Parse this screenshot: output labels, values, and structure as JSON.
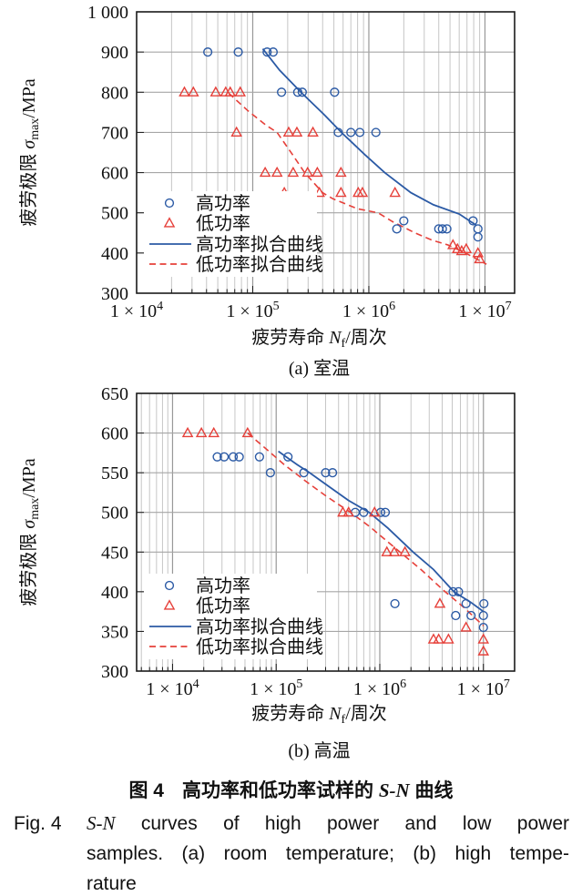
{
  "figure": {
    "caption_zh": {
      "fig_label": "图 4",
      "text_pre": "高功率和低功率试样的 ",
      "italic": "S-N",
      "text_post": " 曲线"
    },
    "caption_en": {
      "fig_label": "Fig. 4",
      "line1_italic": "S-N",
      "line1_rest": "curves of high power and low power",
      "line2": "samples. (a) room temperature; (b) high tempe-",
      "line3": "rature"
    }
  },
  "colors": {
    "high_power": "#2b5aa5",
    "low_power": "#e6403a",
    "grid_minor": "#c6c6c6",
    "grid_major": "#989898",
    "grid_horizontal": "#a6a6a6",
    "frame": "#1a1a1a"
  },
  "chart_data": [
    {
      "type": "scatter",
      "sub_caption": "(a) 室温",
      "xlabel_parts": {
        "pre": "疲劳寿命 ",
        "italic": "N",
        "sub": "f",
        "post": "/周次"
      },
      "ylabel_parts": {
        "pre": "疲劳极限 ",
        "italic": "σ",
        "sub": "max",
        "post": "/MPa"
      },
      "x_scale": "log",
      "x_range": [
        10000,
        18000000
      ],
      "y_range": [
        300,
        1000
      ],
      "x_ticks": [
        {
          "value": 10000,
          "mantissa": "1 × 10",
          "exponent": "4"
        },
        {
          "value": 100000,
          "mantissa": "1 × 10",
          "exponent": "5"
        },
        {
          "value": 1000000,
          "mantissa": "1 × 10",
          "exponent": "6"
        },
        {
          "value": 10000000,
          "mantissa": "1 × 10",
          "exponent": "7"
        }
      ],
      "y_ticks": [
        {
          "value": 300,
          "label": "300"
        },
        {
          "value": 400,
          "label": "400"
        },
        {
          "value": 500,
          "label": "500"
        },
        {
          "value": 600,
          "label": "600"
        },
        {
          "value": 700,
          "label": "700"
        },
        {
          "value": 800,
          "label": "800"
        },
        {
          "value": 900,
          "label": "900"
        },
        {
          "value": 1000,
          "label": "1 000"
        }
      ],
      "series": [
        {
          "id": "high-power-points",
          "label": "高功率",
          "type": "scatter",
          "marker": "circle",
          "color_key": "high_power",
          "points": [
            [
              41000,
              900
            ],
            [
              75000,
              900
            ],
            [
              133000,
              900
            ],
            [
              150000,
              900
            ],
            [
              177000,
              800
            ],
            [
              244000,
              800
            ],
            [
              267000,
              800
            ],
            [
              507000,
              800
            ],
            [
              545000,
              700
            ],
            [
              700000,
              700
            ],
            [
              836000,
              700
            ],
            [
              1150000,
              700
            ],
            [
              1740000,
              460
            ],
            [
              2000000,
              480
            ],
            [
              4000000,
              460
            ],
            [
              4300000,
              460
            ],
            [
              4700000,
              460
            ],
            [
              7900000,
              480
            ],
            [
              8700000,
              460
            ],
            [
              8700000,
              440
            ]
          ]
        },
        {
          "id": "low-power-points",
          "label": "低功率",
          "type": "scatter",
          "marker": "triangle",
          "color_key": "low_power",
          "points": [
            [
              25800,
              800
            ],
            [
              30800,
              800
            ],
            [
              48000,
              800
            ],
            [
              58500,
              800
            ],
            [
              64000,
              800
            ],
            [
              78000,
              800
            ],
            [
              72500,
              700
            ],
            [
              204000,
              700
            ],
            [
              240000,
              700
            ],
            [
              330000,
              700
            ],
            [
              128000,
              600
            ],
            [
              162000,
              600
            ],
            [
              223000,
              600
            ],
            [
              297000,
              600
            ],
            [
              360000,
              600
            ],
            [
              575000,
              600
            ],
            [
              187000,
              550
            ],
            [
              375000,
              550
            ],
            [
              575000,
              550
            ],
            [
              810000,
              550
            ],
            [
              880000,
              550
            ],
            [
              1680000,
              550
            ],
            [
              5300000,
              420
            ],
            [
              5800000,
              410
            ],
            [
              6300000,
              405
            ],
            [
              6900000,
              410
            ],
            [
              8700000,
              400
            ],
            [
              9000000,
              385
            ]
          ]
        },
        {
          "id": "high-power-fit",
          "label": "高功率拟合曲线",
          "type": "line",
          "style": "solid",
          "color_key": "high_power",
          "points": [
            [
              122000,
              908
            ],
            [
              170000,
              855
            ],
            [
              260000,
              800
            ],
            [
              410000,
              745
            ],
            [
              580000,
              700
            ],
            [
              920000,
              645
            ],
            [
              1370000,
              600
            ],
            [
              2300000,
              550
            ],
            [
              3600000,
              520
            ],
            [
              6000000,
              497
            ],
            [
              8500000,
              468
            ]
          ]
        },
        {
          "id": "low-power-fit",
          "label": "低功率拟合曲线",
          "type": "line",
          "style": "dashed",
          "color_key": "low_power",
          "points": [
            [
              62000,
              798
            ],
            [
              90000,
              755
            ],
            [
              130000,
              718
            ],
            [
              162000,
              700
            ],
            [
              220000,
              645
            ],
            [
              280000,
              600
            ],
            [
              400000,
              550
            ],
            [
              490000,
              535
            ],
            [
              800000,
              510
            ],
            [
              1200000,
              500
            ],
            [
              1600000,
              478
            ],
            [
              2500000,
              450
            ],
            [
              3500000,
              432
            ],
            [
              4800000,
              420
            ],
            [
              7000000,
              398
            ],
            [
              10300000,
              372
            ]
          ]
        }
      ]
    },
    {
      "type": "scatter",
      "sub_caption": "(b) 高温",
      "xlabel_parts": {
        "pre": "疲劳寿命 ",
        "italic": "N",
        "sub": "f",
        "post": "/周次"
      },
      "ylabel_parts": {
        "pre": "疲劳极限 ",
        "italic": "σ",
        "sub": "max",
        "post": "/MPa"
      },
      "x_scale": "log",
      "x_range": [
        4500,
        20000000
      ],
      "y_range": [
        300,
        650
      ],
      "x_ticks": [
        {
          "value": 10000,
          "mantissa": "1 × 10",
          "exponent": "4"
        },
        {
          "value": 100000,
          "mantissa": "1 × 10",
          "exponent": "5"
        },
        {
          "value": 1000000,
          "mantissa": "1 × 10",
          "exponent": "6"
        },
        {
          "value": 10000000,
          "mantissa": "1 × 10",
          "exponent": "7"
        }
      ],
      "y_ticks": [
        {
          "value": 300,
          "label": "300"
        },
        {
          "value": 350,
          "label": "350"
        },
        {
          "value": 400,
          "label": "400"
        },
        {
          "value": 450,
          "label": "450"
        },
        {
          "value": 500,
          "label": "500"
        },
        {
          "value": 550,
          "label": "550"
        },
        {
          "value": 600,
          "label": "600"
        },
        {
          "value": 650,
          "label": "650"
        }
      ],
      "series": [
        {
          "id": "high-power-points",
          "label": "高功率",
          "type": "scatter",
          "marker": "circle",
          "color_key": "high_power",
          "points": [
            [
              27000,
              570
            ],
            [
              31500,
              570
            ],
            [
              38500,
              570
            ],
            [
              44000,
              570
            ],
            [
              69000,
              570
            ],
            [
              130000,
              570
            ],
            [
              88000,
              550
            ],
            [
              185000,
              550
            ],
            [
              300000,
              550
            ],
            [
              350000,
              550
            ],
            [
              580000,
              500
            ],
            [
              700000,
              500
            ],
            [
              1020000,
              500
            ],
            [
              1130000,
              500
            ],
            [
              1400000,
              385
            ],
            [
              5100000,
              400
            ],
            [
              5750000,
              400
            ],
            [
              6800000,
              385
            ],
            [
              10100000,
              385
            ],
            [
              5400000,
              370
            ],
            [
              7600000,
              370
            ],
            [
              10000000,
              370
            ],
            [
              10000000,
              355
            ]
          ]
        },
        {
          "id": "low-power-points",
          "label": "低功率",
          "type": "scatter",
          "marker": "triangle",
          "color_key": "low_power",
          "points": [
            [
              14000,
              600
            ],
            [
              19000,
              600
            ],
            [
              25000,
              600
            ],
            [
              53000,
              600
            ],
            [
              440000,
              500
            ],
            [
              500000,
              500
            ],
            [
              890000,
              500
            ],
            [
              1170000,
              450
            ],
            [
              1380000,
              450
            ],
            [
              1750000,
              450
            ],
            [
              3800000,
              385
            ],
            [
              6800000,
              355
            ],
            [
              3300000,
              340
            ],
            [
              3700000,
              340
            ],
            [
              4600000,
              340
            ],
            [
              10000000,
              340
            ],
            [
              10000000,
              325
            ]
          ]
        },
        {
          "id": "high-power-fit",
          "label": "高功率拟合曲线",
          "type": "line",
          "style": "solid",
          "color_key": "high_power",
          "points": [
            [
              105000,
              577
            ],
            [
              160000,
              560
            ],
            [
              210000,
              550
            ],
            [
              320000,
              533
            ],
            [
              500000,
              515
            ],
            [
              790000,
              500
            ],
            [
              1200000,
              480
            ],
            [
              2100000,
              450
            ],
            [
              3300000,
              428
            ],
            [
              5200000,
              400
            ],
            [
              7500000,
              387
            ],
            [
              10000000,
              375
            ]
          ]
        },
        {
          "id": "low-power-fit",
          "label": "低功率拟合曲线",
          "type": "line",
          "style": "dashed",
          "color_key": "low_power",
          "points": [
            [
              53000,
              600
            ],
            [
              80000,
              580
            ],
            [
              120000,
              560
            ],
            [
              190000,
              540
            ],
            [
              300000,
              521
            ],
            [
              520000,
              500
            ],
            [
              800000,
              482
            ],
            [
              1500000,
              452
            ],
            [
              2500000,
              428
            ],
            [
              4100000,
              402
            ],
            [
              6500000,
              380
            ],
            [
              10000000,
              357
            ]
          ]
        }
      ]
    }
  ]
}
